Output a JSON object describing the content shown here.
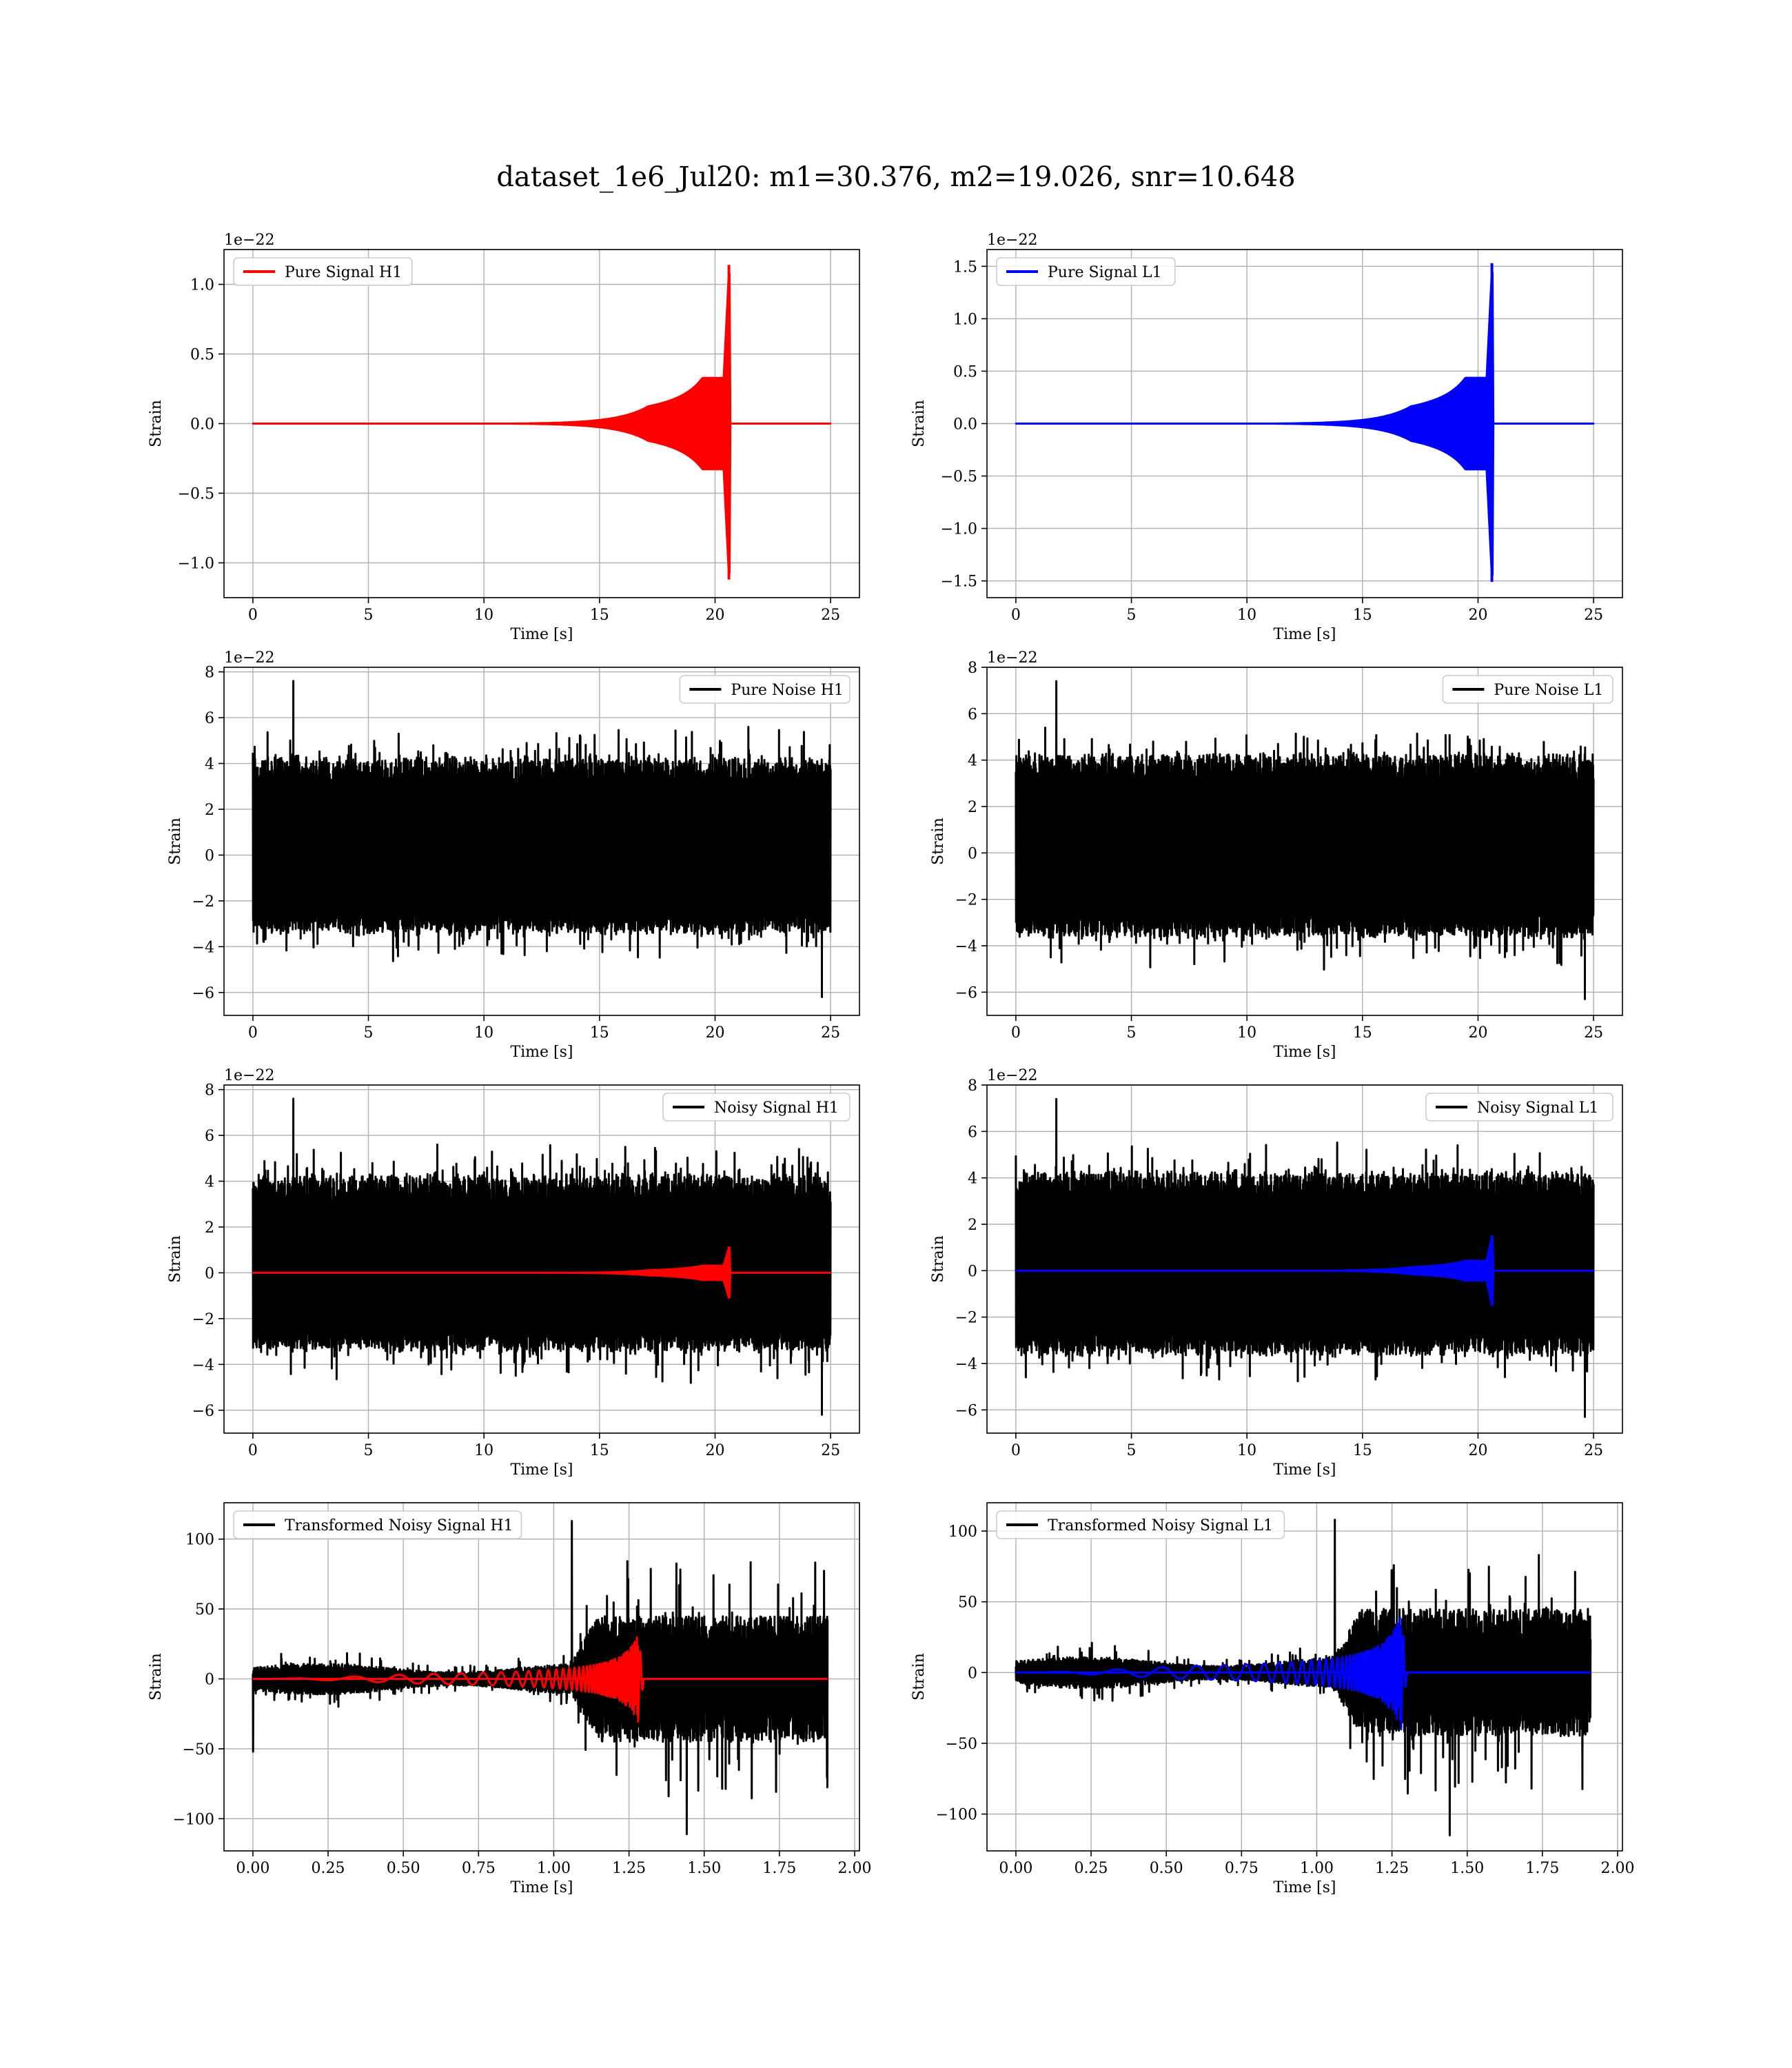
{
  "figure_title": "dataset_1e6_Jul20: m1=30.376, m2=19.026, snr=10.648",
  "chart_data": [
    {
      "id": "pure-signal-h1",
      "type": "line",
      "title": "",
      "xlabel": "Time [s]",
      "ylabel": "Strain",
      "y_offset_label": "1e−22",
      "xlim": [
        -1.25,
        26.25
      ],
      "ylim": [
        -1.25,
        1.25
      ],
      "xticks": [
        0,
        5,
        10,
        15,
        20,
        25
      ],
      "xtick_labels": [
        "0",
        "5",
        "10",
        "15",
        "20",
        "25"
      ],
      "yticks": [
        -1.0,
        -0.5,
        0.0,
        0.5,
        1.0
      ],
      "ytick_labels": [
        "−1.0",
        "−0.5",
        "0.0",
        "0.5",
        "1.0"
      ],
      "grid": true,
      "legend_position": "upper-left",
      "series": [
        {
          "name": "Pure Signal H1",
          "color": "#ff0000",
          "kind": "chirp",
          "x_start": 0,
          "x_end": 25,
          "merger_time": 20.6,
          "peak": 1.14,
          "trough": -1.12,
          "late_inspiral_amplitude": 0.3
        }
      ]
    },
    {
      "id": "pure-signal-l1",
      "type": "line",
      "title": "",
      "xlabel": "Time [s]",
      "ylabel": "Strain",
      "y_offset_label": "1e−22",
      "xlim": [
        -1.25,
        26.25
      ],
      "ylim": [
        -1.66,
        1.66
      ],
      "xticks": [
        0,
        5,
        10,
        15,
        20,
        25
      ],
      "xtick_labels": [
        "0",
        "5",
        "10",
        "15",
        "20",
        "25"
      ],
      "yticks": [
        -1.5,
        -1.0,
        -0.5,
        0.0,
        0.5,
        1.0,
        1.5
      ],
      "ytick_labels": [
        "−1.5",
        "−1.0",
        "−0.5",
        "0.0",
        "0.5",
        "1.0",
        "1.5"
      ],
      "grid": true,
      "legend_position": "upper-left",
      "series": [
        {
          "name": "Pure Signal L1",
          "color": "#0000ff",
          "kind": "chirp",
          "x_start": 0,
          "x_end": 25,
          "merger_time": 20.6,
          "peak": 1.53,
          "trough": -1.51,
          "late_inspiral_amplitude": 0.4
        }
      ]
    },
    {
      "id": "pure-noise-h1",
      "type": "line",
      "title": "",
      "xlabel": "Time [s]",
      "ylabel": "Strain",
      "y_offset_label": "1e−22",
      "xlim": [
        -1.25,
        26.25
      ],
      "ylim": [
        -7.0,
        8.2
      ],
      "xticks": [
        0,
        5,
        10,
        15,
        20,
        25
      ],
      "xtick_labels": [
        "0",
        "5",
        "10",
        "15",
        "20",
        "25"
      ],
      "yticks": [
        -6,
        -4,
        -2,
        0,
        2,
        4,
        6,
        8
      ],
      "ytick_labels": [
        "−6",
        "−4",
        "−2",
        "0",
        "2",
        "4",
        "6",
        "8"
      ],
      "grid": true,
      "legend_position": "upper-right",
      "series": [
        {
          "name": "Pure Noise H1",
          "color": "#000000",
          "kind": "noise",
          "x_start": 0,
          "x_end": 25,
          "core_max": 4.2,
          "core_min": -3.2,
          "max": 7.6,
          "min": -6.2
        }
      ]
    },
    {
      "id": "pure-noise-l1",
      "type": "line",
      "title": "",
      "xlabel": "Time [s]",
      "ylabel": "Strain",
      "y_offset_label": "1e−22",
      "xlim": [
        -1.25,
        26.25
      ],
      "ylim": [
        -7.0,
        8.0
      ],
      "xticks": [
        0,
        5,
        10,
        15,
        20,
        25
      ],
      "xtick_labels": [
        "0",
        "5",
        "10",
        "15",
        "20",
        "25"
      ],
      "yticks": [
        -6,
        -4,
        -2,
        0,
        2,
        4,
        6,
        8
      ],
      "ytick_labels": [
        "−6",
        "−4",
        "−2",
        "0",
        "2",
        "4",
        "6",
        "8"
      ],
      "grid": true,
      "legend_position": "upper-right",
      "series": [
        {
          "name": "Pure Noise L1",
          "color": "#000000",
          "kind": "noise",
          "x_start": 0,
          "x_end": 25,
          "core_max": 4.2,
          "core_min": -3.4,
          "max": 7.4,
          "min": -6.3
        }
      ]
    },
    {
      "id": "noisy-signal-h1",
      "type": "line",
      "title": "",
      "xlabel": "Time [s]",
      "ylabel": "Strain",
      "y_offset_label": "1e−22",
      "xlim": [
        -1.25,
        26.25
      ],
      "ylim": [
        -7.0,
        8.2
      ],
      "xticks": [
        0,
        5,
        10,
        15,
        20,
        25
      ],
      "xtick_labels": [
        "0",
        "5",
        "10",
        "15",
        "20",
        "25"
      ],
      "yticks": [
        -6,
        -4,
        -2,
        0,
        2,
        4,
        6,
        8
      ],
      "ytick_labels": [
        "−6",
        "−4",
        "−2",
        "0",
        "2",
        "4",
        "6",
        "8"
      ],
      "grid": true,
      "legend_position": "upper-right",
      "series": [
        {
          "name": "Noisy Signal H1",
          "color": "#000000",
          "kind": "noise",
          "x_start": 0,
          "x_end": 25,
          "core_max": 4.2,
          "core_min": -3.2,
          "max": 7.6,
          "min": -6.2
        },
        {
          "color": "#ff0000",
          "kind": "chirp",
          "x_start": 0,
          "x_end": 25,
          "merger_time": 20.6,
          "peak": 1.14,
          "trough": -1.12,
          "late_inspiral_amplitude": 0.3
        }
      ]
    },
    {
      "id": "noisy-signal-l1",
      "type": "line",
      "title": "",
      "xlabel": "Time [s]",
      "ylabel": "Strain",
      "y_offset_label": "1e−22",
      "xlim": [
        -1.25,
        26.25
      ],
      "ylim": [
        -7.0,
        8.0
      ],
      "xticks": [
        0,
        5,
        10,
        15,
        20,
        25
      ],
      "xtick_labels": [
        "0",
        "5",
        "10",
        "15",
        "20",
        "25"
      ],
      "yticks": [
        -6,
        -4,
        -2,
        0,
        2,
        4,
        6,
        8
      ],
      "ytick_labels": [
        "−6",
        "−4",
        "−2",
        "0",
        "2",
        "4",
        "6",
        "8"
      ],
      "grid": true,
      "legend_position": "upper-right",
      "series": [
        {
          "name": "Noisy Signal L1",
          "color": "#000000",
          "kind": "noise",
          "x_start": 0,
          "x_end": 25,
          "core_max": 4.2,
          "core_min": -3.4,
          "max": 7.4,
          "min": -6.3
        },
        {
          "color": "#0000ff",
          "kind": "chirp",
          "x_start": 0,
          "x_end": 25,
          "merger_time": 20.6,
          "peak": 1.53,
          "trough": -1.51,
          "late_inspiral_amplitude": 0.4
        }
      ]
    },
    {
      "id": "transformed-noisy-signal-h1",
      "type": "line",
      "title": "",
      "xlabel": "Time [s]",
      "ylabel": "Strain",
      "y_offset_label": "",
      "xlim": [
        -0.096,
        2.016
      ],
      "ylim": [
        -123,
        126
      ],
      "xticks": [
        0.0,
        0.25,
        0.5,
        0.75,
        1.0,
        1.25,
        1.5,
        1.75,
        2.0
      ],
      "xtick_labels": [
        "0.00",
        "0.25",
        "0.50",
        "0.75",
        "1.00",
        "1.25",
        "1.50",
        "1.75",
        "2.00"
      ],
      "yticks": [
        -100,
        -50,
        0,
        50,
        100
      ],
      "ytick_labels": [
        "−100",
        "−50",
        "0",
        "50",
        "100"
      ],
      "grid": true,
      "legend_position": "upper-left",
      "series": [
        {
          "name": "Transformed Noisy Signal H1",
          "color": "#000000",
          "kind": "whitened",
          "x_start": 0,
          "x_end": 1.91,
          "transition_time": 1.1,
          "early_amplitude": 8,
          "late_amplitude": 45,
          "max": 113,
          "min": -111,
          "start_spike": -52
        },
        {
          "color": "#ff0000",
          "kind": "chirp-fast",
          "x_start": 0,
          "x_end": 1.91,
          "merger_time": 1.28,
          "peak": 32,
          "trough": -32
        }
      ]
    },
    {
      "id": "transformed-noisy-signal-l1",
      "type": "line",
      "title": "",
      "xlabel": "Time [s]",
      "ylabel": "Strain",
      "y_offset_label": "",
      "xlim": [
        -0.096,
        2.016
      ],
      "ylim": [
        -126,
        120
      ],
      "xticks": [
        0.0,
        0.25,
        0.5,
        0.75,
        1.0,
        1.25,
        1.5,
        1.75,
        2.0
      ],
      "xtick_labels": [
        "0.00",
        "0.25",
        "0.50",
        "0.75",
        "1.00",
        "1.25",
        "1.50",
        "1.75",
        "2.00"
      ],
      "yticks": [
        -100,
        -50,
        0,
        50,
        100
      ],
      "ytick_labels": [
        "−100",
        "−50",
        "0",
        "50",
        "100"
      ],
      "grid": true,
      "legend_position": "upper-left",
      "series": [
        {
          "name": "Transformed Noisy Signal L1",
          "color": "#000000",
          "kind": "whitened",
          "x_start": 0,
          "x_end": 1.91,
          "transition_time": 1.1,
          "early_amplitude": 8,
          "late_amplitude": 45,
          "max": 108,
          "min": -115,
          "start_spike": null
        },
        {
          "color": "#0000ff",
          "kind": "chirp-fast",
          "x_start": 0,
          "x_end": 1.91,
          "merger_time": 1.28,
          "peak": 42,
          "trough": -42
        }
      ]
    }
  ]
}
